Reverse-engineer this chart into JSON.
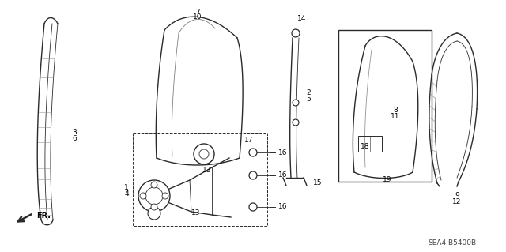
{
  "background_color": "#ffffff",
  "line_color": "#2a2a2a",
  "watermark": "SEA4-B5400B"
}
